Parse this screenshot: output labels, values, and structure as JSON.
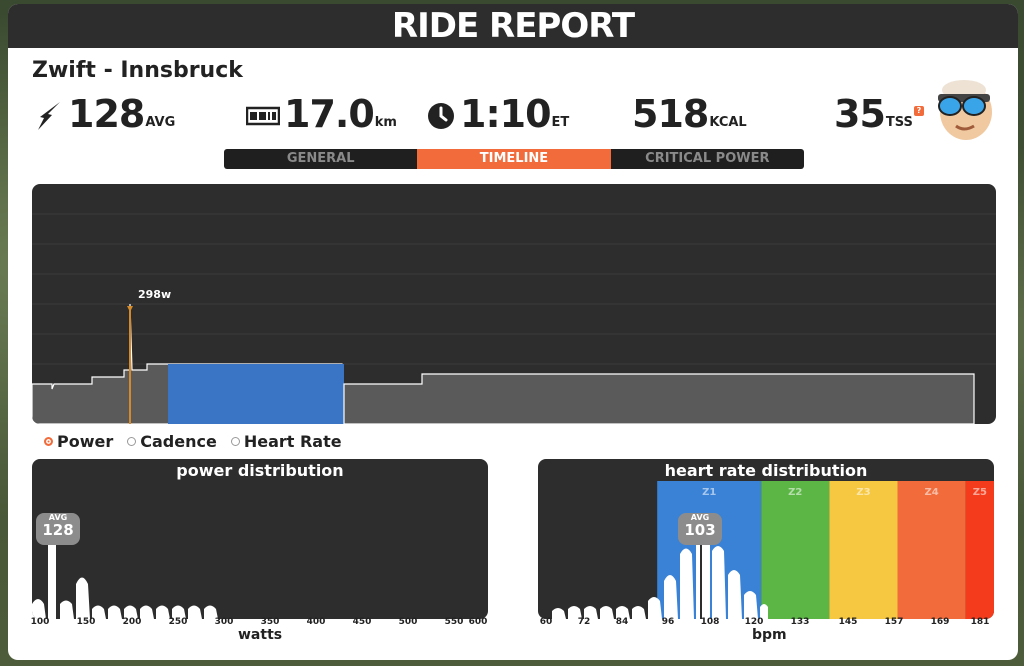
{
  "header": {
    "title": "RIDE REPORT"
  },
  "ride": {
    "name": "Zwift - Innsbruck"
  },
  "stats": {
    "power": {
      "icon": "lightning-bolt-icon",
      "value": "128",
      "unit": "AVG"
    },
    "distance": {
      "icon": "odometer-icon",
      "value": "17.0",
      "unit": "km"
    },
    "time": {
      "icon": "clock-icon",
      "value": "1:10",
      "unit": "ET"
    },
    "calories": {
      "value": "518",
      "unit": "KCAL"
    },
    "tss": {
      "value": "35",
      "unit": "TSS",
      "help": "?"
    }
  },
  "tabs": [
    {
      "label": "GENERAL",
      "active": false
    },
    {
      "label": "TIMELINE",
      "active": true
    },
    {
      "label": "CRITICAL POWER",
      "active": false
    }
  ],
  "timeline": {
    "peak_label": "298w"
  },
  "legend": [
    {
      "label": "Power",
      "selected": true
    },
    {
      "label": "Cadence",
      "selected": false
    },
    {
      "label": "Heart Rate",
      "selected": false
    }
  ],
  "power_distribution": {
    "title": "power distribution",
    "avg_label": "AVG",
    "avg_value": "128",
    "xlabel": "watts",
    "ticks": [
      "100",
      "150",
      "200",
      "250",
      "300",
      "350",
      "400",
      "450",
      "500",
      "550",
      "600"
    ]
  },
  "hr_distribution": {
    "title": "heart rate distribution",
    "avg_label": "AVG",
    "avg_value": "103",
    "xlabel": "bpm",
    "ticks": [
      "60",
      "72",
      "84",
      "96",
      "108",
      "120",
      "133",
      "145",
      "157",
      "169",
      "181"
    ],
    "zones": [
      {
        "label": "Z1",
        "from": 91,
        "to": 120,
        "color": "#3a82d6"
      },
      {
        "label": "Z2",
        "from": 120,
        "to": 139,
        "color": "#5cb646"
      },
      {
        "label": "Z3",
        "from": 139,
        "to": 158,
        "color": "#f6c842"
      },
      {
        "label": "Z4",
        "from": 158,
        "to": 177,
        "color": "#f26b3a"
      },
      {
        "label": "Z5",
        "from": 177,
        "to": 186,
        "color": "#f43c1c"
      }
    ]
  },
  "colors": {
    "accent": "#f26b3a",
    "panel_dark": "#2d2d2d",
    "highlight_blue": "#3a74c4"
  }
}
